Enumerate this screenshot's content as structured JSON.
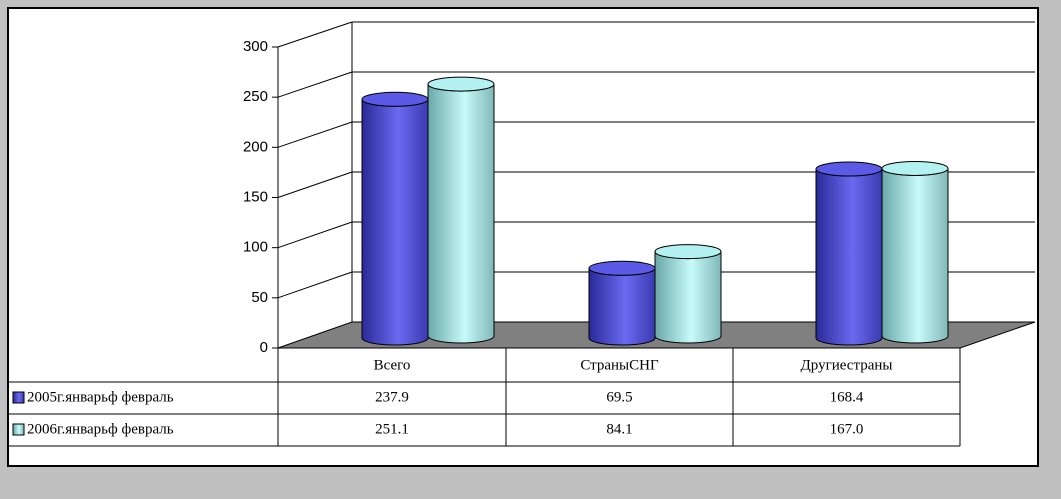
{
  "chart_data": {
    "type": "bar3d",
    "categories": [
      "Всего",
      "СтраныСНГ",
      "Другиестраны"
    ],
    "series": [
      {
        "name": "2005г.январьф февраль",
        "color": "#5a5ae6",
        "values": [
          237.9,
          69.5,
          168.4
        ],
        "value_labels": [
          "237.9",
          "69.5",
          "168.4"
        ]
      },
      {
        "name": "2006г.январьф февраль",
        "color": "#b4f2f2",
        "values": [
          251.1,
          84.1,
          167.0
        ],
        "value_labels": [
          "251.1",
          "84.1",
          "167.0"
        ]
      }
    ],
    "ylim": [
      0,
      300
    ],
    "yticks": [
      0,
      50,
      100,
      150,
      200,
      250,
      300
    ],
    "grid": true
  }
}
